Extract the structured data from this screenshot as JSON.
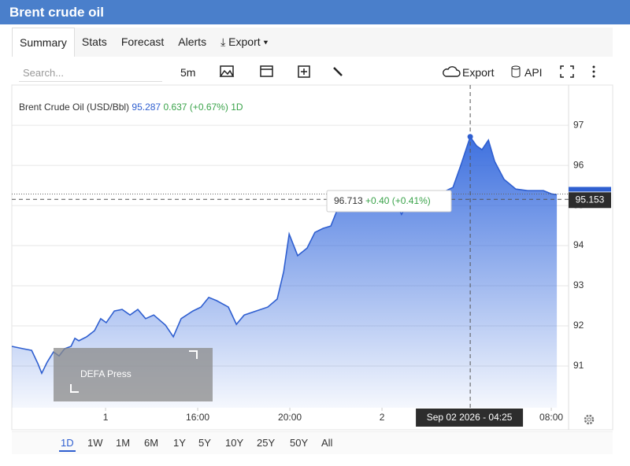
{
  "header": {
    "title": "Brent crude oil"
  },
  "tabs": [
    "Summary",
    "Stats",
    "Forecast",
    "Alerts",
    "Export"
  ],
  "toolbar": {
    "search_placeholder": "Search...",
    "interval": "5m",
    "export": "Export",
    "api": "API"
  },
  "ranges": [
    "1D",
    "1W",
    "1M",
    "6M",
    "1Y",
    "5Y",
    "10Y",
    "25Y",
    "50Y",
    "All"
  ],
  "watermark": "DEFA Press",
  "chart_data": {
    "type": "area",
    "title": "Brent Crude Oil (USD/Bbl)",
    "quote": {
      "price": 95.287,
      "change": 0.637,
      "change_percent": {
        "value": 0.67,
        "label": "(+0.67%)"
      },
      "period": "1D"
    },
    "x": [
      -4.07,
      -3.56,
      -3.21,
      -2.94,
      -2.77,
      -2.53,
      -2.26,
      -2.02,
      -1.78,
      -1.5,
      -1.33,
      -1.16,
      -0.82,
      -0.48,
      -0.21,
      0.03,
      0.38,
      0.72,
      1.06,
      1.4,
      1.74,
      2.09,
      2.6,
      2.94,
      3.28,
      3.79,
      4.14,
      4.48,
      4.82,
      5.33,
      5.68,
      6.02,
      6.53,
      7.04,
      7.45,
      7.73,
      7.97,
      8.34,
      8.75,
      9.09,
      9.44,
      9.78,
      10.12,
      10.46,
      11.15,
      11.83,
      12.51,
      12.85,
      13.2,
      13.88,
      14.56,
      15.08,
      15.42,
      15.83,
      16.1,
      16.34,
      16.62,
      16.89,
      17.3,
      17.81,
      18.32,
      19.01,
      19.35,
      19.59
    ],
    "series": [
      {
        "name": "Brent Crude Oil",
        "color": "#2f5fd0",
        "values": [
          91.49,
          91.43,
          91.39,
          91.06,
          90.82,
          91.1,
          91.35,
          91.25,
          91.43,
          91.49,
          91.69,
          91.63,
          91.73,
          91.88,
          92.18,
          92.08,
          92.37,
          92.41,
          92.27,
          92.41,
          92.18,
          92.27,
          92.02,
          91.73,
          92.18,
          92.37,
          92.47,
          92.71,
          92.63,
          92.47,
          92.04,
          92.27,
          92.37,
          92.47,
          92.67,
          93.35,
          94.29,
          93.75,
          93.94,
          94.33,
          94.43,
          94.49,
          94.98,
          95.22,
          95.25,
          95.18,
          95.18,
          94.78,
          95.16,
          95.22,
          95.31,
          95.45,
          96.0,
          96.71,
          96.49,
          96.39,
          96.63,
          96.1,
          95.65,
          95.41,
          95.37,
          95.37,
          95.29,
          95.27
        ]
      }
    ],
    "xlim": [
      -4.07,
      20.1
    ],
    "xticks": [
      {
        "value": 0,
        "label": "1"
      },
      {
        "value": 4,
        "label": "16:00"
      },
      {
        "value": 8,
        "label": "20:00"
      },
      {
        "value": 12,
        "label": "2"
      },
      {
        "value": 19.35,
        "label": "08:00"
      }
    ],
    "ylim": [
      89.96,
      98.16
    ],
    "yticks": [
      91,
      92,
      93,
      94,
      95,
      96,
      97
    ],
    "grid": true,
    "tooltip": {
      "value": 96.713,
      "change": {
        "value": 0.4,
        "label": "+0.40"
      },
      "change_percent": {
        "value": 0.41,
        "label": "(+0.41%)"
      },
      "x_label": "Sep 02 2026 - 04:25"
    },
    "crosshair": {
      "y": 95.153
    }
  }
}
